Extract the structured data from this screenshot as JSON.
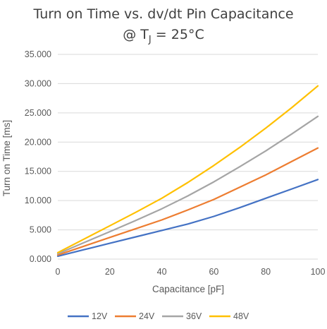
{
  "chart_data": {
    "type": "line",
    "title": "Turn on Time vs. dv/dt Pin Capacitance",
    "subtitle_prefix": "@ T",
    "subtitle_sub": "J",
    "subtitle_suffix": " = 25°C",
    "xlabel": "Capacitance [pF]",
    "ylabel": "Turn on Time [ms]",
    "xlim": [
      0,
      100
    ],
    "ylim": [
      0,
      35
    ],
    "x_ticks": [
      0,
      20,
      40,
      60,
      80,
      100
    ],
    "x_tick_labels": [
      "0",
      "20",
      "40",
      "60",
      "80",
      "100"
    ],
    "y_ticks": [
      0,
      5,
      10,
      15,
      20,
      25,
      30,
      35
    ],
    "y_tick_labels": [
      "0.000",
      "5.000",
      "10.000",
      "15.000",
      "20.000",
      "25.000",
      "30.000",
      "35.000"
    ],
    "grid": "horizontal",
    "legend_position": "bottom",
    "x": [
      0,
      10,
      20,
      30,
      40,
      50,
      60,
      70,
      80,
      90,
      100
    ],
    "series": [
      {
        "name": "12V",
        "color": "#4472C4",
        "values": [
          0.5,
          1.6,
          2.7,
          3.8,
          4.9,
          6.0,
          7.3,
          8.8,
          10.4,
          12.0,
          13.6
        ]
      },
      {
        "name": "24V",
        "color": "#ED7D31",
        "values": [
          0.7,
          2.2,
          3.7,
          5.2,
          6.7,
          8.4,
          10.2,
          12.3,
          14.4,
          16.7,
          19.0
        ]
      },
      {
        "name": "36V",
        "color": "#A5A5A5",
        "values": [
          0.9,
          2.8,
          4.7,
          6.6,
          8.6,
          10.8,
          13.2,
          15.8,
          18.5,
          21.4,
          24.4
        ]
      },
      {
        "name": "48V",
        "color": "#FFC000",
        "values": [
          1.1,
          3.4,
          5.7,
          8.0,
          10.4,
          13.1,
          16.0,
          19.1,
          22.4,
          25.9,
          29.6
        ]
      }
    ]
  }
}
